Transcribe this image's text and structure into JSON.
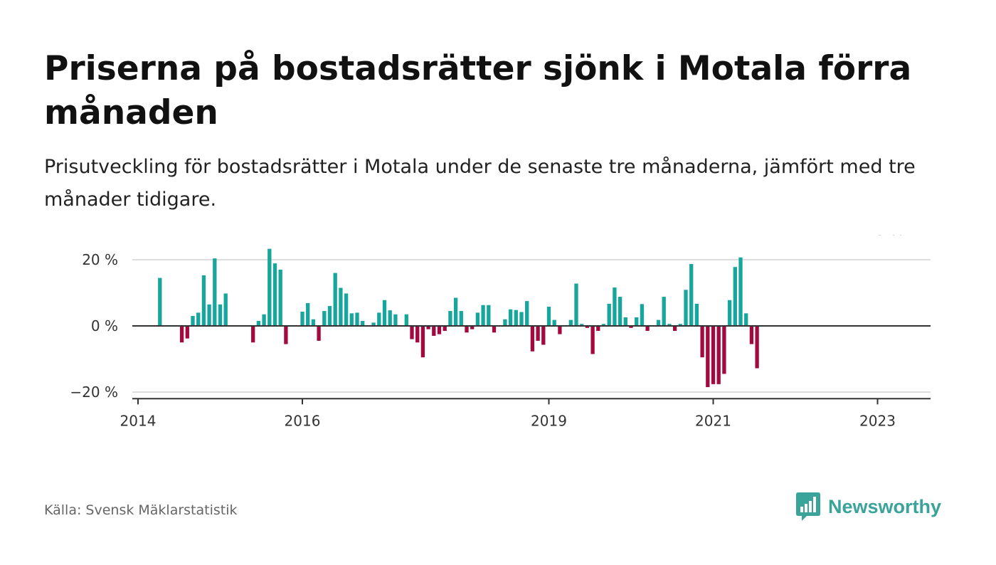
{
  "title": "Priserna på bostadsrätter sjönk i Motala förra månaden",
  "subtitle": "Prisutveckling för bostadsrätter i Motala under de senaste tre månaderna, jämfört med tre månader tidigare.",
  "source": "Källa: Svensk Mäklarstatistik",
  "brand": "Newsworthy",
  "colors": {
    "positive": "#16a69b",
    "negative": "#a3093f",
    "brand": "#3aa39a"
  },
  "chart_data": {
    "type": "bar",
    "x_start": "2014-01",
    "y_unit": "%",
    "ylim": [
      -22,
      23
    ],
    "y_ticks": [
      {
        "value": 20,
        "label": "20 %"
      },
      {
        "value": 0,
        "label": "0 %"
      },
      {
        "value": -20,
        "label": "−20 %"
      }
    ],
    "x_ticks": [
      {
        "month_index": 0,
        "label": "2014"
      },
      {
        "month_index": 30,
        "label": "2016"
      },
      {
        "month_index": 75,
        "label": "2019"
      },
      {
        "month_index": 105,
        "label": "2021"
      },
      {
        "month_index": 135,
        "label": "2023"
      }
    ],
    "values": [
      0,
      0,
      0,
      0,
      14.5,
      0,
      0,
      0,
      -5,
      -3.8,
      3,
      4,
      15.3,
      6.5,
      20.4,
      6.5,
      9.8,
      0,
      0,
      0,
      0,
      -5,
      1.5,
      3.5,
      23.3,
      18.9,
      17,
      -5.5,
      0,
      0,
      4.3,
      6.9,
      2,
      -4.5,
      4.5,
      6,
      16,
      11.5,
      9.8,
      3.8,
      4,
      1.5,
      0,
      1,
      4,
      7.8,
      4.7,
      3.5,
      0,
      3.5,
      -4,
      -5,
      -9.5,
      -1,
      -3,
      -2.5,
      -1.5,
      4.5,
      8.5,
      4.5,
      -2,
      -1,
      4,
      6.3,
      6.3,
      -2,
      0,
      2,
      5,
      4.8,
      4.2,
      7.5,
      -7.7,
      -4.5,
      -5.7,
      5.8,
      1.8,
      -2.5,
      0,
      1.8,
      12.8,
      0.6,
      -0.6,
      -8.5,
      -1.5,
      0.6,
      6.7,
      11.6,
      8.8,
      2.6,
      -0.6,
      2.6,
      6.6,
      -1.5,
      0,
      1.8,
      8.8,
      0.6,
      -1.5,
      0.6,
      10.9,
      18.7,
      6.7,
      -9.5,
      -18.5,
      -17.6,
      -17.6,
      -14.5,
      7.8,
      17.8,
      20.7,
      3.8,
      -5.5,
      -12.8
    ],
    "annotation": {
      "month_index": 135,
      "label": "−13 %"
    }
  }
}
